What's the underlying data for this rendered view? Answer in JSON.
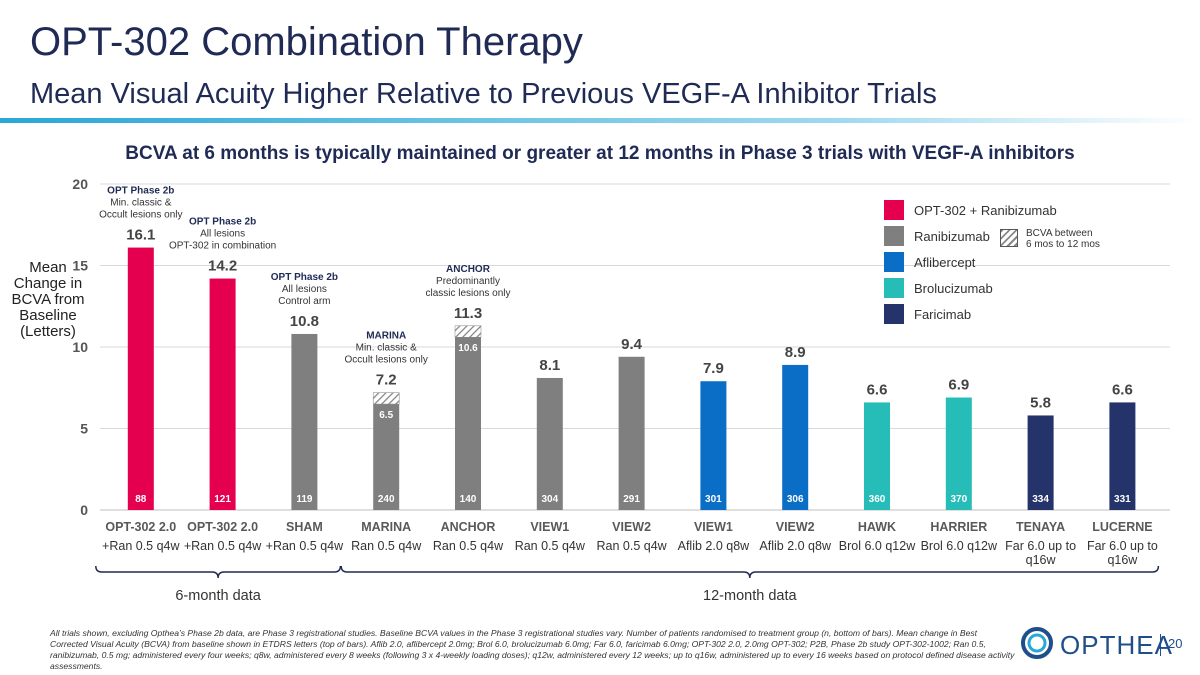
{
  "header": {
    "title": "OPT-302 Combination Therapy",
    "subtitle": "Mean Visual Acuity Higher Relative to Previous VEGF-A Inhibitor Trials"
  },
  "colors": {
    "opt302": "#e4004f",
    "ranibizumab": "#7f7f7f",
    "aflibercept": "#0a6ec6",
    "brolucizumab": "#26bcb8",
    "faricimab": "#25336b",
    "accent": "#1f2a55"
  },
  "chart_data": {
    "type": "bar",
    "title": "BCVA at 6 months is typically maintained or greater at 12 months in Phase 3 trials with VEGF-A inhibitors",
    "ylabel": "Mean Change in BCVA from Baseline (Letters)",
    "xlabel": "",
    "ylim": [
      0,
      20
    ],
    "yticks": [
      "0",
      "5",
      "10",
      "15",
      "20"
    ],
    "grid": true,
    "legend_position": "top-right",
    "bars": [
      {
        "cat1": "OPT-302 2.0",
        "cat2": [
          "+Ran 0.5 q4w"
        ],
        "value": 16.1,
        "label": "16.1",
        "n": "88",
        "color_key": "opt302"
      },
      {
        "cat1": "OPT-302 2.0",
        "cat2": [
          "+Ran 0.5 q4w"
        ],
        "value": 14.2,
        "label": "14.2",
        "n": "121",
        "color_key": "opt302"
      },
      {
        "cat1": "SHAM",
        "cat2": [
          "+Ran 0.5 q4w"
        ],
        "value": 10.8,
        "label": "10.8",
        "n": "119",
        "color_key": "ranibizumab"
      },
      {
        "cat1": "MARINA",
        "cat2": [
          "Ran 0.5 q4w"
        ],
        "value": 7.2,
        "value_6mo": 6.5,
        "label": "7.2",
        "label_6mo": "6.5",
        "n": "240",
        "color_key": "ranibizumab"
      },
      {
        "cat1": "ANCHOR",
        "cat2": [
          "Ran 0.5 q4w"
        ],
        "value": 11.3,
        "value_6mo": 10.6,
        "label": "11.3",
        "label_6mo": "10.6",
        "n": "140",
        "color_key": "ranibizumab"
      },
      {
        "cat1": "VIEW1",
        "cat2": [
          "Ran 0.5 q4w"
        ],
        "value": 8.1,
        "label": "8.1",
        "n": "304",
        "color_key": "ranibizumab"
      },
      {
        "cat1": "VIEW2",
        "cat2": [
          "Ran 0.5 q4w"
        ],
        "value": 9.4,
        "label": "9.4",
        "n": "291",
        "color_key": "ranibizumab"
      },
      {
        "cat1": "VIEW1",
        "cat2": [
          "Aflib 2.0 q8w"
        ],
        "value": 7.9,
        "label": "7.9",
        "n": "301",
        "color_key": "aflibercept"
      },
      {
        "cat1": "VIEW2",
        "cat2": [
          "Aflib 2.0 q8w"
        ],
        "value": 8.9,
        "label": "8.9",
        "n": "306",
        "color_key": "aflibercept"
      },
      {
        "cat1": "HAWK",
        "cat2": [
          "Brol 6.0 q12w"
        ],
        "value": 6.6,
        "label": "6.6",
        "n": "360",
        "color_key": "brolucizumab"
      },
      {
        "cat1": "HARRIER",
        "cat2": [
          "Brol 6.0 q12w"
        ],
        "value": 6.9,
        "label": "6.9",
        "n": "370",
        "color_key": "brolucizumab"
      },
      {
        "cat1": "TENAYA",
        "cat2": [
          "Far 6.0 up to",
          "q16w"
        ],
        "value": 5.8,
        "label": "5.8",
        "n": "334",
        "color_key": "faricimab"
      },
      {
        "cat1": "LUCERNE",
        "cat2": [
          "Far 6.0 up to",
          "q16w"
        ],
        "value": 6.6,
        "label": "6.6",
        "n": "331",
        "color_key": "faricimab"
      }
    ],
    "annotations": [
      {
        "bar": 0,
        "lines": [
          "OPT Phase 2b",
          "Min. classic &",
          "Occult lesions only"
        ]
      },
      {
        "bar": 1,
        "lines": [
          "OPT Phase 2b",
          "All lesions",
          "OPT-302 in combination"
        ]
      },
      {
        "bar": 2,
        "lines": [
          "OPT Phase 2b",
          "All lesions",
          "Control arm"
        ]
      },
      {
        "bar": 3,
        "lines": [
          "MARINA",
          "Min. classic &",
          "Occult lesions only"
        ]
      },
      {
        "bar": 4,
        "lines": [
          "ANCHOR",
          "Predominantly",
          "classic lesions only"
        ]
      }
    ],
    "legend": [
      {
        "label": "OPT-302 + Ranibizumab",
        "color_key": "opt302"
      },
      {
        "label": "Ranibizumab",
        "color_key": "ranibizumab"
      },
      {
        "label": "Aflibercept",
        "color_key": "aflibercept"
      },
      {
        "label": "Brolucizumab",
        "color_key": "brolucizumab"
      },
      {
        "label": "Faricimab",
        "color_key": "faricimab"
      }
    ],
    "hatch_legend": [
      "BCVA between",
      "6 mos to 12 mos"
    ],
    "groups": [
      {
        "label": "6-month data",
        "from_bar": 0,
        "to_bar": 2
      },
      {
        "label": "12-month data",
        "from_bar": 3,
        "to_bar": 12
      }
    ]
  },
  "footnote": "All trials shown, excluding Opthea’s Phase 2b data, are Phase 3 registrational studies.  Baseline BCVA values in the Phase 3 registrational studies vary. Number of patients randomised to treatment group (n, bottom of bars).  Mean change in Best Corrected Visual Acuity (BCVA) from baseline shown in ETDRS letters (top of bars).  Aflib 2.0, aflibercept 2.0mg; Brol 6.0, brolucizumab 6.0mg; Far 6.0, faricimab 6.0mg; OPT-302 2.0, 2.0mg OPT-302; P2B, Phase 2b study OPT-302-1002; Ran 0.5, ranibizumab, 0.5 mg; administered every four weeks; q8w, administered every 8 weeks (following 3 x 4-weekly loading doses); q12w, administered every 12 weeks; up to q16w, administered up to every 16 weeks based on protocol defined disease activity assessments.",
  "logo_text": "OPTHEA",
  "page_number": "20"
}
